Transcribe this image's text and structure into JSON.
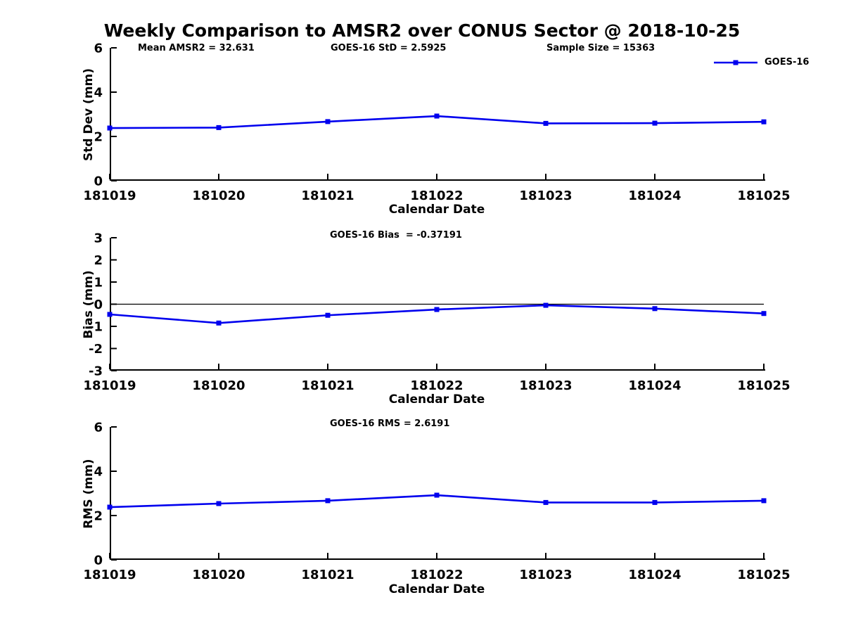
{
  "figure": {
    "title": "Weekly Comparison to AMSR2 over CONUS Sector @ 2018-10-25",
    "background_color": "#ffffff",
    "accent_color": "#0000ee",
    "axis_color": "#000000",
    "marker_shape": "square"
  },
  "legend": {
    "label": "GOES-16",
    "position": "upper-right"
  },
  "chart_data": [
    {
      "id": "std-dev-panel",
      "type": "line",
      "annotations": [
        "Mean AMSR2 = 32.631",
        "GOES-16 StD = 2.5925",
        "Sample Size = 15363"
      ],
      "ylabel": "Std Dev (mm)",
      "xlabel": "Calendar Date",
      "categories": [
        "181019",
        "181020",
        "181021",
        "181022",
        "181023",
        "181024",
        "181025"
      ],
      "series": [
        {
          "name": "GOES-16",
          "values": [
            2.38,
            2.4,
            2.67,
            2.92,
            2.59,
            2.6,
            2.66
          ]
        }
      ],
      "ylim": [
        0,
        6
      ],
      "yticks": [
        0,
        2,
        4,
        6
      ],
      "zero_line": false,
      "show_legend": true,
      "grid": false
    },
    {
      "id": "bias-panel",
      "type": "line",
      "annotations": [
        "GOES-16 Bias  = -0.37191"
      ],
      "ylabel": "Bias (mm)",
      "xlabel": "Calendar Date",
      "categories": [
        "181019",
        "181020",
        "181021",
        "181022",
        "181023",
        "181024",
        "181025"
      ],
      "series": [
        {
          "name": "GOES-16",
          "values": [
            -0.46,
            -0.85,
            -0.5,
            -0.24,
            -0.05,
            -0.2,
            -0.42
          ]
        }
      ],
      "ylim": [
        -3,
        3
      ],
      "yticks": [
        -3,
        -2,
        -1,
        0,
        1,
        2,
        3
      ],
      "zero_line": true,
      "show_legend": false,
      "grid": false
    },
    {
      "id": "rms-panel",
      "type": "line",
      "annotations": [
        "GOES-16 RMS = 2.6191"
      ],
      "ylabel": "RMS (mm)",
      "xlabel": "Calendar Date",
      "categories": [
        "181019",
        "181020",
        "181021",
        "181022",
        "181023",
        "181024",
        "181025"
      ],
      "series": [
        {
          "name": "GOES-16",
          "values": [
            2.38,
            2.54,
            2.67,
            2.92,
            2.59,
            2.59,
            2.67
          ]
        }
      ],
      "ylim": [
        0,
        6
      ],
      "yticks": [
        0,
        2,
        4,
        6
      ],
      "zero_line": false,
      "show_legend": false,
      "grid": false
    }
  ]
}
